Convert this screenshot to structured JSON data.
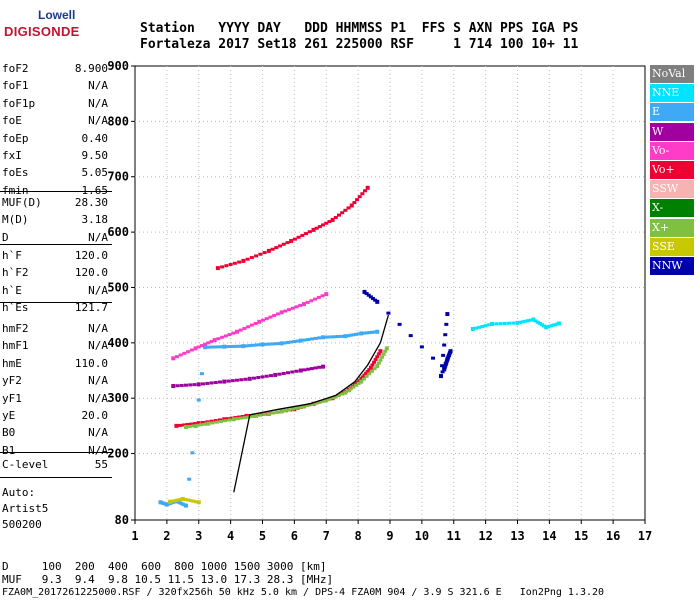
{
  "logo": {
    "top": "Lowell",
    "bottom": "DIGISONDE"
  },
  "header": {
    "line1": "Station   YYYY DAY   DDD HHMMSS P1  FFS S AXN PPS IGA PS",
    "line2": "Fortaleza 2017 Set18 261 225000 RSF     1 714 100 10+ 11"
  },
  "params_a": [
    {
      "name": "foF2",
      "value": "8.900"
    },
    {
      "name": "foF1",
      "value": "N/A"
    },
    {
      "name": "foF1p",
      "value": "N/A"
    },
    {
      "name": "foE",
      "value": "N/A"
    },
    {
      "name": "foEp",
      "value": "0.40"
    },
    {
      "name": "fxI",
      "value": "9.50"
    },
    {
      "name": "foEs",
      "value": "5.05"
    },
    {
      "name": "fmin",
      "value": "1.65"
    }
  ],
  "params_b": [
    {
      "name": "MUF(D)",
      "value": "28.30"
    },
    {
      "name": "M(D)",
      "value": "3.18"
    },
    {
      "name": "D",
      "value": "N/A"
    }
  ],
  "params_c": [
    {
      "name": "h`F",
      "value": "120.0"
    },
    {
      "name": "h`F2",
      "value": "120.0"
    },
    {
      "name": "h`E",
      "value": "N/A"
    },
    {
      "name": "h`Es",
      "value": "121.7"
    }
  ],
  "params_d": [
    {
      "name": "hmF2",
      "value": "N/A"
    },
    {
      "name": "hmF1",
      "value": "N/A"
    },
    {
      "name": "hmE",
      "value": "110.0"
    },
    {
      "name": "yF2",
      "value": "N/A"
    },
    {
      "name": "yF1",
      "value": "N/A"
    },
    {
      "name": "yE",
      "value": "20.0"
    },
    {
      "name": "B0",
      "value": "N/A"
    },
    {
      "name": "B1",
      "value": "N/A"
    }
  ],
  "params_e": [
    {
      "name": "C-level",
      "value": "55"
    }
  ],
  "auto": {
    "line1": "Auto:",
    "line2": "Artist5",
    "line3": "500200"
  },
  "legend": [
    {
      "label": "NoVal",
      "color": "#7f7f7f"
    },
    {
      "label": "NNE",
      "color": "#00e5ff"
    },
    {
      "label": "E",
      "color": "#3fa9f5"
    },
    {
      "label": "W",
      "color": "#a0009f"
    },
    {
      "label": "Vo-",
      "color": "#ff3cc8"
    },
    {
      "label": "Vo+",
      "color": "#ee0033"
    },
    {
      "label": "SSW",
      "color": "#f5b3b3"
    },
    {
      "label": "X-",
      "color": "#008000"
    },
    {
      "label": "X+",
      "color": "#80c040"
    },
    {
      "label": "SSE",
      "color": "#c8c800"
    },
    {
      "label": "NNW",
      "color": "#0000aa"
    }
  ],
  "footer": {
    "d_line": "D     100  200  400  600  800 1000 1500 3000 [km]",
    "muf_line": "MUF   9.3  9.4  9.8 10.5 11.5 13.0 17.3 28.3 [MHz]",
    "file_line": "FZA0M_2017261225000.RSF / 320fx256h 50 kHz 5.0 km / DPS-4 FZA0M 904 / 3.9 S 321.6 E   Ion2Png 1.3.20"
  },
  "chart_data": {
    "type": "scatter",
    "title": "",
    "xlabel": "",
    "ylabel": "",
    "x_unit": "MHz",
    "y_unit": "km",
    "xlim": [
      1,
      17
    ],
    "ylim": [
      80,
      900
    ],
    "xticks": [
      1,
      2,
      3,
      4,
      5,
      6,
      7,
      8,
      9,
      10,
      11,
      12,
      13,
      14,
      15,
      16,
      17
    ],
    "yticks": [
      80,
      200,
      300,
      400,
      500,
      600,
      700,
      800,
      900
    ],
    "grid": "dotted",
    "legend_position": "right",
    "traces": [
      {
        "name": "E",
        "color": "#3fa9f5",
        "points": [
          [
            1.8,
            112
          ],
          [
            2.0,
            108
          ],
          [
            2.3,
            114
          ],
          [
            2.6,
            106
          ],
          [
            3.2,
            392
          ],
          [
            3.8,
            393
          ],
          [
            4.4,
            394
          ],
          [
            5.0,
            397
          ],
          [
            5.6,
            399
          ],
          [
            6.2,
            404
          ],
          [
            6.9,
            410
          ],
          [
            7.6,
            412
          ],
          [
            8.1,
            417
          ],
          [
            8.6,
            420
          ]
        ]
      },
      {
        "name": "Vo+",
        "color": "#ee0033",
        "points": [
          [
            2.3,
            250
          ],
          [
            3.0,
            255
          ],
          [
            3.8,
            262
          ],
          [
            4.5,
            268
          ],
          [
            5.2,
            272
          ],
          [
            6.0,
            280
          ],
          [
            6.6,
            290
          ],
          [
            7.2,
            300
          ],
          [
            7.7,
            315
          ],
          [
            8.1,
            335
          ],
          [
            8.4,
            355
          ],
          [
            8.7,
            385
          ]
        ]
      },
      {
        "name": "X+",
        "color": "#80c040",
        "points": [
          [
            2.6,
            248
          ],
          [
            3.3,
            254
          ],
          [
            4.1,
            262
          ],
          [
            4.8,
            268
          ],
          [
            5.6,
            276
          ],
          [
            6.3,
            285
          ],
          [
            7.0,
            296
          ],
          [
            7.6,
            310
          ],
          [
            8.1,
            330
          ],
          [
            8.6,
            358
          ],
          [
            8.9,
            390
          ]
        ]
      },
      {
        "name": "W",
        "color": "#a0009f",
        "points": [
          [
            2.2,
            322
          ],
          [
            3.0,
            325
          ],
          [
            3.8,
            330
          ],
          [
            4.6,
            335
          ],
          [
            5.4,
            342
          ],
          [
            6.2,
            350
          ],
          [
            6.9,
            357
          ]
        ]
      },
      {
        "name": "Vo-",
        "color": "#ff3cc8",
        "points": [
          [
            2.2,
            372
          ],
          [
            2.9,
            390
          ],
          [
            3.5,
            405
          ],
          [
            4.2,
            420
          ],
          [
            4.9,
            438
          ],
          [
            5.6,
            455
          ],
          [
            6.3,
            470
          ],
          [
            7.0,
            488
          ]
        ]
      },
      {
        "name": "Vo+ (2-hop)",
        "color": "#ee0033",
        "points": [
          [
            3.6,
            535
          ],
          [
            4.4,
            548
          ],
          [
            5.2,
            566
          ],
          [
            5.9,
            584
          ],
          [
            6.6,
            604
          ],
          [
            7.2,
            622
          ],
          [
            7.8,
            648
          ],
          [
            8.3,
            680
          ]
        ]
      },
      {
        "name": "NNW",
        "color": "#0000aa",
        "points": [
          [
            8.2,
            492
          ],
          [
            8.6,
            474
          ],
          [
            10.7,
            352
          ],
          [
            10.8,
            370
          ],
          [
            10.9,
            385
          ],
          [
            10.6,
            340
          ],
          [
            10.8,
            452
          ]
        ]
      },
      {
        "name": "NNE",
        "color": "#00e5ff",
        "points": [
          [
            11.6,
            425
          ],
          [
            12.2,
            434
          ],
          [
            13.0,
            436
          ],
          [
            13.5,
            442
          ],
          [
            13.9,
            428
          ],
          [
            14.3,
            435
          ]
        ]
      },
      {
        "name": "SSE",
        "color": "#c8c800",
        "points": [
          [
            2.1,
            113
          ],
          [
            2.5,
            118
          ],
          [
            3.0,
            112
          ]
        ]
      }
    ],
    "curves": [
      {
        "name": "trace",
        "color": "#000000",
        "points": [
          [
            4.1,
            130
          ],
          [
            4.35,
            200
          ],
          [
            4.6,
            270
          ],
          [
            5.5,
            280
          ],
          [
            6.5,
            290
          ],
          [
            7.3,
            305
          ],
          [
            7.9,
            330
          ],
          [
            8.3,
            360
          ],
          [
            8.7,
            400
          ],
          [
            8.95,
            450
          ]
        ]
      }
    ]
  }
}
